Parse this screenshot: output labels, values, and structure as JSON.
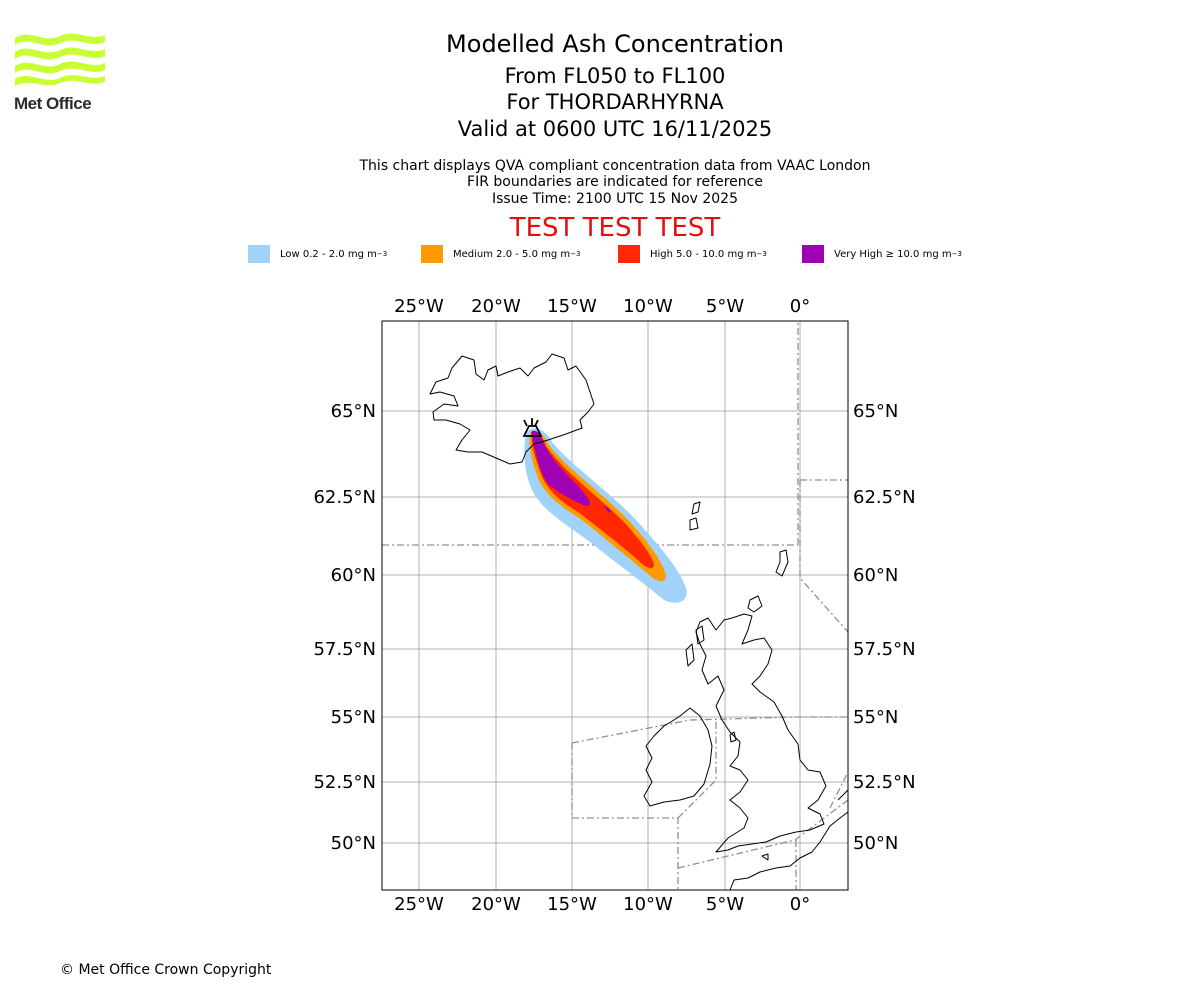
{
  "logo": {
    "text": "Met Office",
    "colors": {
      "waves": "#c8ff32",
      "text": "#2b2b2b"
    }
  },
  "header": {
    "title": "Modelled Ash Concentration",
    "level_range": "From FL050 to FL100",
    "volcano": "For THORDARHYRNA",
    "valid_time": "Valid at 0600 UTC 16/11/2025"
  },
  "info": {
    "line1": "This chart displays QVA compliant concentration data from VAAC London",
    "line2": "FIR boundaries are indicated for reference",
    "line3": "Issue Time: 2100 UTC 15 Nov 2025"
  },
  "test_banner": "TEST TEST TEST",
  "legend": [
    {
      "label": "Low 0.2 - 2.0 mg m",
      "sup": "−3",
      "color": "#a0d2fa"
    },
    {
      "label": "Medium 2.0 - 5.0 mg m",
      "sup": "−3",
      "color": "#ff9b00"
    },
    {
      "label": "High 5.0 - 10.0 mg m",
      "sup": "−3",
      "color": "#ff2800"
    },
    {
      "label": "Very High  ≥  10.0 mg m",
      "sup": "−3",
      "color": "#a000b4"
    }
  ],
  "map": {
    "lon_ticks": [
      "25°W",
      "20°W",
      "15°W",
      "10°W",
      "5°W",
      "0°"
    ],
    "lat_ticks": [
      "65°N",
      "62.5°N",
      "60°N",
      "57.5°N",
      "55°N",
      "52.5°N",
      "50°N"
    ]
  },
  "copyright": "© Met Office Crown Copyright"
}
